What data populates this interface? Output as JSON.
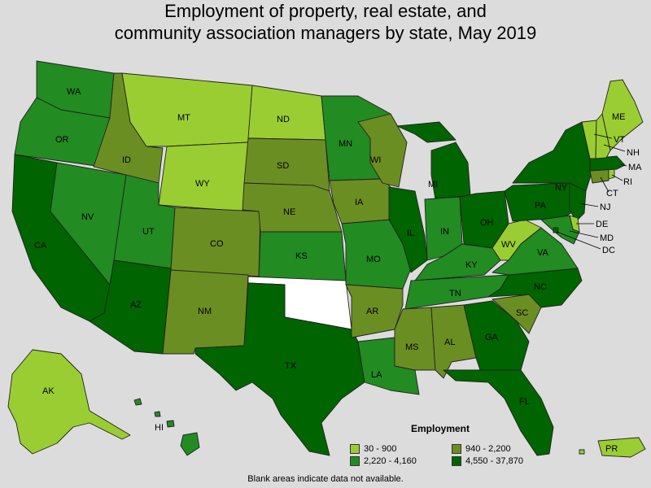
{
  "title": {
    "line1": "Employment of property, real estate, and",
    "line2": "community association managers by state, May 2019"
  },
  "legend": {
    "title": "Employment",
    "bins": [
      {
        "label": "30 - 900",
        "color": "#9acd32"
      },
      {
        "label": "940 - 2,200",
        "color": "#6b8e23"
      },
      {
        "label": "2,220 - 4,160",
        "color": "#228b22"
      },
      {
        "label": "4,550 - 37,870",
        "color": "#006400"
      }
    ]
  },
  "no_data_color": "#ffffff",
  "footnote": "Blank areas indicate data not available.",
  "states": {
    "WA": 2,
    "OR": 2,
    "CA": 3,
    "NV": 2,
    "ID": 1,
    "MT": 0,
    "WY": 0,
    "UT": 2,
    "AZ": 3,
    "CO": 1,
    "NM": 1,
    "ND": 0,
    "SD": 1,
    "NE": 1,
    "KS": 2,
    "OK": null,
    "TX": 3,
    "MN": 2,
    "IA": 1,
    "MO": 2,
    "AR": 1,
    "LA": 2,
    "WI": 1,
    "IL": 3,
    "MI": 3,
    "IN": 2,
    "OH": 3,
    "KY": 2,
    "TN": 2,
    "MS": 1,
    "AL": 1,
    "GA": 3,
    "FL": 3,
    "SC": 1,
    "NC": 3,
    "VA": 2,
    "WV": 0,
    "PA": 3,
    "NY": 3,
    "NJ": 3,
    "DE": 0,
    "MD": 2,
    "DC": 3,
    "CT": 1,
    "RI": 0,
    "MA": 3,
    "VT": 0,
    "NH": 0,
    "ME": 0,
    "AK": 0,
    "HI": 2,
    "PR": 0
  }
}
